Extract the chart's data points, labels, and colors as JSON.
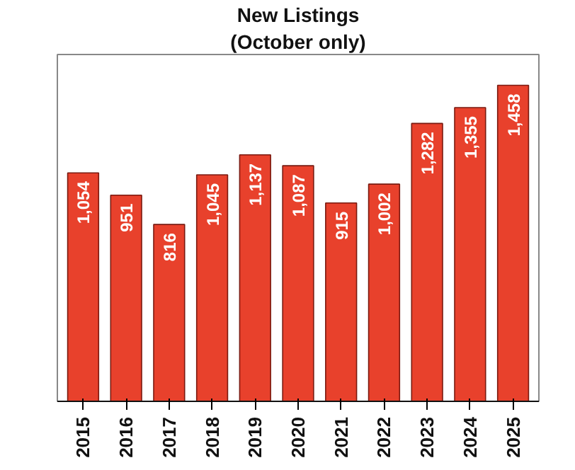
{
  "chart_data": {
    "type": "bar",
    "title": "New Listings",
    "subtitle": "(October only)",
    "categories": [
      "2015",
      "2016",
      "2017",
      "2018",
      "2019",
      "2020",
      "2021",
      "2022",
      "2023",
      "2024",
      "2025"
    ],
    "values": [
      1054,
      951,
      816,
      1045,
      1137,
      1087,
      915,
      1002,
      1282,
      1355,
      1458
    ],
    "value_labels": [
      "1,054",
      "951",
      "816",
      "1,045",
      "1,137",
      "1,087",
      "915",
      "1,002",
      "1,282",
      "1,355",
      "1,458"
    ],
    "color": "#e8412c",
    "ylim": [
      0,
      1600
    ],
    "grid": false,
    "tick_labels": "x"
  }
}
